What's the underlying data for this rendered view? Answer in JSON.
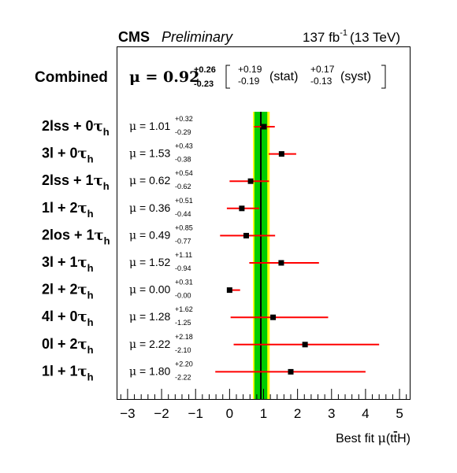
{
  "header": {
    "cms": "CMS",
    "preliminary": "Preliminary",
    "lumi_value": "137 fb",
    "lumi_exp": "-1",
    "energy": "(13 TeV)"
  },
  "combined": {
    "label": "Combined",
    "mu_text": "μ = 0.92",
    "up": "+0.26",
    "down": "-0.23",
    "stat_up": "+0.19",
    "stat_down": "-0.19",
    "stat_label": "(stat)",
    "syst_up": "+0.17",
    "syst_down": "-0.13",
    "syst_label": "(syst)"
  },
  "chart_data": {
    "type": "scatter",
    "title": "CMS Preliminary",
    "xlabel": "Best fit μ(tt̄H)",
    "xlim": [
      -3.3,
      5.3
    ],
    "x_ticks": [
      -3,
      -2,
      -1,
      0,
      1,
      2,
      3,
      4,
      5
    ],
    "combined": {
      "value": 0.92,
      "up": 0.26,
      "down": 0.23,
      "stat_up": 0.19,
      "stat_down": 0.19,
      "syst_up": 0.17,
      "syst_down": 0.13
    },
    "band_colors": {
      "inner": "#00cc00",
      "outer": "#ffff00",
      "line": "#000000"
    },
    "error_color": "#ff0000",
    "channels": [
      {
        "base": "2lss + 0",
        "sub": "h",
        "mu": "1.01",
        "up": "+0.32",
        "down": "-0.29",
        "value": 1.01,
        "err_up": 0.32,
        "err_down": 0.29
      },
      {
        "base": "3l + 0",
        "sub": "h",
        "mu": "1.53",
        "up": "+0.43",
        "down": "-0.38",
        "value": 1.53,
        "err_up": 0.43,
        "err_down": 0.38
      },
      {
        "base": "2lss + 1",
        "sub": "h",
        "mu": "0.62",
        "up": "+0.54",
        "down": "-0.62",
        "value": 0.62,
        "err_up": 0.54,
        "err_down": 0.62
      },
      {
        "base": "1l + 2",
        "sub": "h",
        "mu": "0.36",
        "up": "+0.51",
        "down": "-0.44",
        "value": 0.36,
        "err_up": 0.51,
        "err_down": 0.44
      },
      {
        "base": "2los + 1",
        "sub": "h",
        "mu": "0.49",
        "up": "+0.85",
        "down": "-0.77",
        "value": 0.49,
        "err_up": 0.85,
        "err_down": 0.77
      },
      {
        "base": "3l + 1",
        "sub": "h",
        "mu": "1.52",
        "up": "+1.11",
        "down": "-0.94",
        "value": 1.52,
        "err_up": 1.11,
        "err_down": 0.94
      },
      {
        "base": "2l + 2",
        "sub": "h",
        "mu": "0.00",
        "up": "+0.31",
        "down": "-0.00",
        "value": 0.0,
        "err_up": 0.31,
        "err_down": 0.0
      },
      {
        "base": "4l + 0",
        "sub": "h",
        "mu": "1.28",
        "up": "+1.62",
        "down": "-1.25",
        "value": 1.28,
        "err_up": 1.62,
        "err_down": 1.25
      },
      {
        "base": "0l + 2",
        "sub": "h",
        "mu": "2.22",
        "up": "+2.18",
        "down": "-2.10",
        "value": 2.22,
        "err_up": 2.18,
        "err_down": 2.1
      },
      {
        "base": "1l + 1",
        "sub": "h",
        "mu": "1.80",
        "up": "+2.20",
        "down": "-2.22",
        "value": 1.8,
        "err_up": 2.2,
        "err_down": 2.22
      }
    ]
  }
}
